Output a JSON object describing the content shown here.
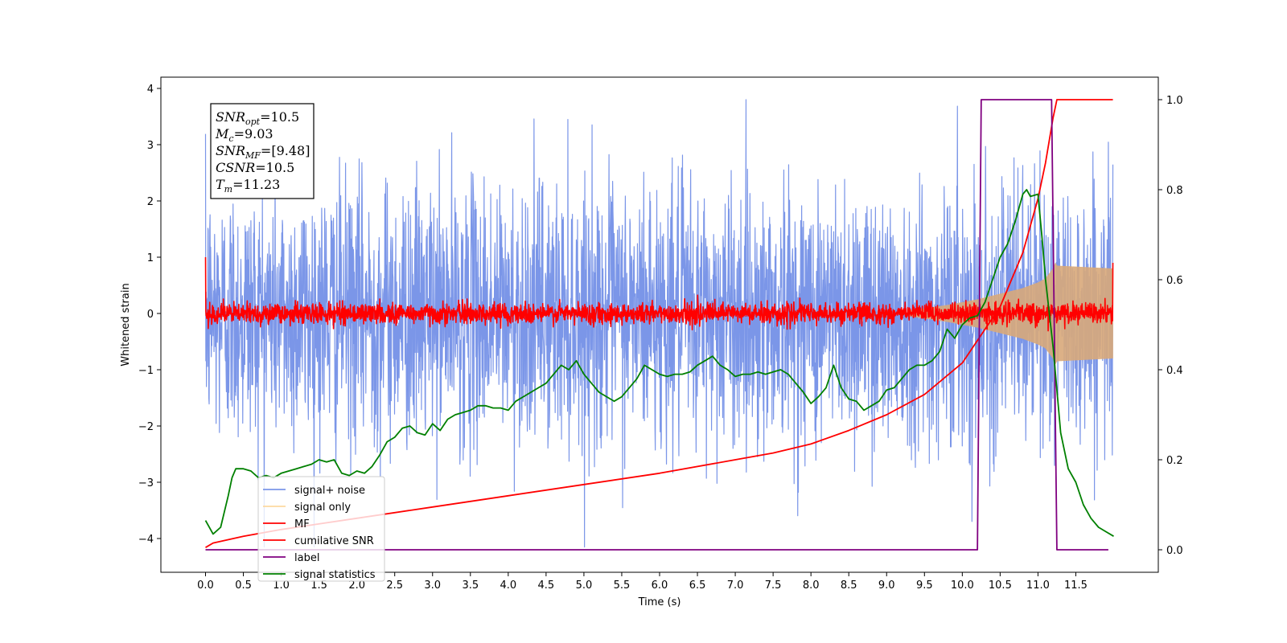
{
  "chart_data": {
    "type": "line",
    "xlabel": "Time (s)",
    "ylabel_left": "Whitened strain",
    "ylabel_right": "",
    "xlim": [
      -0.59,
      12.59
    ],
    "ylim_left": [
      -4.6,
      4.2
    ],
    "ylim_right": [
      -0.05,
      1.05
    ],
    "x_ticks": [
      "0.0",
      "0.5",
      "1.0",
      "1.5",
      "2.0",
      "2.5",
      "3.0",
      "3.5",
      "4.0",
      "4.5",
      "5.0",
      "5.5",
      "6.0",
      "6.5",
      "7.0",
      "7.5",
      "8.0",
      "8.5",
      "9.0",
      "9.5",
      "10.0",
      "10.5",
      "11.0",
      "11.5"
    ],
    "y_ticks_left": [
      "4",
      "3",
      "2",
      "1",
      "0",
      "−1",
      "−2",
      "−3",
      "−4"
    ],
    "y_ticks_right": [
      "1.0",
      "0.8",
      "0.6",
      "0.4",
      "0.2",
      "0.0"
    ],
    "grid": false,
    "legend_placement": "lower-left",
    "annotation": {
      "lines": [
        {
          "main": "SNR",
          "sub": "opt",
          "rest": "=10.5"
        },
        {
          "main": "M",
          "sub": "c",
          "rest": "=9.03"
        },
        {
          "main": "SNR",
          "sub": "MF",
          "rest": "=[9.48]"
        },
        {
          "main": "CSNR",
          "sub": "",
          "rest": "=10.5"
        },
        {
          "main": "T",
          "sub": "m",
          "rest": "=11.23"
        }
      ]
    },
    "series": [
      {
        "name": "signal+ noise",
        "axis": "left",
        "color": "#7b96e8",
        "style": "noise",
        "x_range": [
          0,
          11.99
        ],
        "noise_sigma": 1.0,
        "peak_max": 3.8,
        "peak_min": -4.15
      },
      {
        "name": "signal only",
        "axis": "left",
        "color": "#d8a97a",
        "style": "chirp-envelope",
        "envelope": [
          [
            9.3,
            0.05
          ],
          [
            9.8,
            0.15
          ],
          [
            10.2,
            0.25
          ],
          [
            10.5,
            0.35
          ],
          [
            10.8,
            0.45
          ],
          [
            11.0,
            0.55
          ],
          [
            11.1,
            0.62
          ],
          [
            11.2,
            0.8
          ],
          [
            11.23,
            0.9
          ],
          [
            11.25,
            0.85
          ],
          [
            11.99,
            0.8
          ]
        ]
      },
      {
        "name": "MF",
        "axis": "left",
        "color": "#ff0000",
        "style": "noise",
        "x_range": [
          0,
          11.99
        ],
        "noise_sigma": 0.09,
        "start_value": 1.0,
        "end_value": 0.9
      },
      {
        "name": "cumilative SNR",
        "axis": "right",
        "color": "#ff0000",
        "style": "line",
        "points": [
          [
            0,
            0.005
          ],
          [
            0.1,
            0.015
          ],
          [
            0.5,
            0.03
          ],
          [
            1.0,
            0.045
          ],
          [
            2.0,
            0.07
          ],
          [
            3.0,
            0.095
          ],
          [
            4.0,
            0.12
          ],
          [
            5.0,
            0.145
          ],
          [
            6.0,
            0.17
          ],
          [
            7.0,
            0.2
          ],
          [
            7.5,
            0.215
          ],
          [
            8.0,
            0.235
          ],
          [
            8.5,
            0.265
          ],
          [
            9.0,
            0.3
          ],
          [
            9.5,
            0.345
          ],
          [
            10.0,
            0.415
          ],
          [
            10.5,
            0.54
          ],
          [
            10.8,
            0.66
          ],
          [
            11.0,
            0.78
          ],
          [
            11.1,
            0.86
          ],
          [
            11.2,
            0.96
          ],
          [
            11.25,
            1.0
          ],
          [
            11.99,
            1.0
          ]
        ]
      },
      {
        "name": "label",
        "axis": "right",
        "color": "#800080",
        "style": "step",
        "points": [
          [
            0,
            0.0
          ],
          [
            10.2,
            0.0
          ],
          [
            10.25,
            1.0
          ],
          [
            11.18,
            1.0
          ],
          [
            11.25,
            0.0
          ],
          [
            11.93,
            0.0
          ]
        ]
      },
      {
        "name": "signal statistics",
        "axis": "right",
        "color": "#008000",
        "style": "line",
        "points": [
          [
            0.0,
            0.065
          ],
          [
            0.1,
            0.035
          ],
          [
            0.2,
            0.05
          ],
          [
            0.3,
            0.12
          ],
          [
            0.35,
            0.16
          ],
          [
            0.4,
            0.18
          ],
          [
            0.5,
            0.18
          ],
          [
            0.6,
            0.175
          ],
          [
            0.7,
            0.16
          ],
          [
            0.8,
            0.165
          ],
          [
            0.9,
            0.16
          ],
          [
            1.0,
            0.17
          ],
          [
            1.1,
            0.175
          ],
          [
            1.2,
            0.18
          ],
          [
            1.3,
            0.185
          ],
          [
            1.4,
            0.19
          ],
          [
            1.5,
            0.2
          ],
          [
            1.6,
            0.195
          ],
          [
            1.7,
            0.2
          ],
          [
            1.8,
            0.17
          ],
          [
            1.9,
            0.165
          ],
          [
            2.0,
            0.175
          ],
          [
            2.1,
            0.17
          ],
          [
            2.2,
            0.185
          ],
          [
            2.3,
            0.21
          ],
          [
            2.4,
            0.24
          ],
          [
            2.5,
            0.25
          ],
          [
            2.6,
            0.27
          ],
          [
            2.7,
            0.275
          ],
          [
            2.8,
            0.26
          ],
          [
            2.9,
            0.255
          ],
          [
            3.0,
            0.28
          ],
          [
            3.1,
            0.265
          ],
          [
            3.2,
            0.29
          ],
          [
            3.3,
            0.3
          ],
          [
            3.4,
            0.305
          ],
          [
            3.5,
            0.31
          ],
          [
            3.6,
            0.32
          ],
          [
            3.7,
            0.32
          ],
          [
            3.8,
            0.315
          ],
          [
            3.9,
            0.315
          ],
          [
            4.0,
            0.31
          ],
          [
            4.1,
            0.33
          ],
          [
            4.2,
            0.34
          ],
          [
            4.3,
            0.35
          ],
          [
            4.4,
            0.36
          ],
          [
            4.5,
            0.37
          ],
          [
            4.6,
            0.39
          ],
          [
            4.7,
            0.41
          ],
          [
            4.8,
            0.4
          ],
          [
            4.9,
            0.42
          ],
          [
            5.0,
            0.39
          ],
          [
            5.1,
            0.37
          ],
          [
            5.2,
            0.35
          ],
          [
            5.3,
            0.34
          ],
          [
            5.4,
            0.33
          ],
          [
            5.5,
            0.34
          ],
          [
            5.6,
            0.36
          ],
          [
            5.7,
            0.38
          ],
          [
            5.8,
            0.41
          ],
          [
            5.9,
            0.4
          ],
          [
            6.0,
            0.39
          ],
          [
            6.1,
            0.385
          ],
          [
            6.2,
            0.39
          ],
          [
            6.3,
            0.39
          ],
          [
            6.4,
            0.395
          ],
          [
            6.5,
            0.41
          ],
          [
            6.6,
            0.42
          ],
          [
            6.7,
            0.43
          ],
          [
            6.8,
            0.41
          ],
          [
            6.9,
            0.4
          ],
          [
            7.0,
            0.385
          ],
          [
            7.1,
            0.39
          ],
          [
            7.2,
            0.39
          ],
          [
            7.3,
            0.395
          ],
          [
            7.4,
            0.39
          ],
          [
            7.5,
            0.395
          ],
          [
            7.6,
            0.4
          ],
          [
            7.7,
            0.39
          ],
          [
            7.8,
            0.37
          ],
          [
            7.9,
            0.35
          ],
          [
            8.0,
            0.325
          ],
          [
            8.1,
            0.34
          ],
          [
            8.2,
            0.36
          ],
          [
            8.3,
            0.41
          ],
          [
            8.4,
            0.36
          ],
          [
            8.5,
            0.335
          ],
          [
            8.6,
            0.33
          ],
          [
            8.7,
            0.31
          ],
          [
            8.8,
            0.32
          ],
          [
            8.9,
            0.33
          ],
          [
            9.0,
            0.355
          ],
          [
            9.1,
            0.36
          ],
          [
            9.2,
            0.38
          ],
          [
            9.3,
            0.4
          ],
          [
            9.4,
            0.41
          ],
          [
            9.5,
            0.41
          ],
          [
            9.6,
            0.42
          ],
          [
            9.7,
            0.44
          ],
          [
            9.8,
            0.49
          ],
          [
            9.9,
            0.47
          ],
          [
            10.0,
            0.5
          ],
          [
            10.1,
            0.515
          ],
          [
            10.2,
            0.52
          ],
          [
            10.3,
            0.55
          ],
          [
            10.4,
            0.6
          ],
          [
            10.5,
            0.65
          ],
          [
            10.6,
            0.68
          ],
          [
            10.7,
            0.73
          ],
          [
            10.8,
            0.79
          ],
          [
            10.85,
            0.8
          ],
          [
            10.9,
            0.785
          ],
          [
            11.0,
            0.79
          ],
          [
            11.05,
            0.7
          ],
          [
            11.1,
            0.6
          ],
          [
            11.2,
            0.45
          ],
          [
            11.3,
            0.26
          ],
          [
            11.4,
            0.18
          ],
          [
            11.5,
            0.15
          ],
          [
            11.6,
            0.1
          ],
          [
            11.7,
            0.07
          ],
          [
            11.8,
            0.05
          ],
          [
            11.9,
            0.04
          ],
          [
            12.0,
            0.03
          ]
        ]
      }
    ]
  }
}
